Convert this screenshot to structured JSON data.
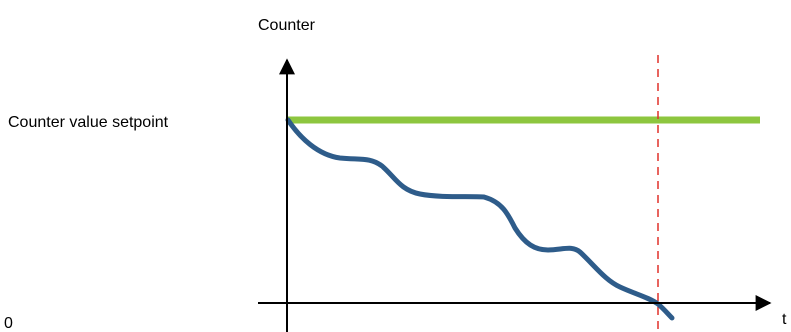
{
  "diagram": {
    "y_axis_label": "Counter",
    "x_axis_label": "t",
    "origin_label": "0",
    "setpoint_label": "Counter value setpoint"
  },
  "colors": {
    "axis": "#000000",
    "setpoint_line": "#8dc63f",
    "counter_curve": "#2e5c8a",
    "marker_line": "#e0302a"
  }
}
